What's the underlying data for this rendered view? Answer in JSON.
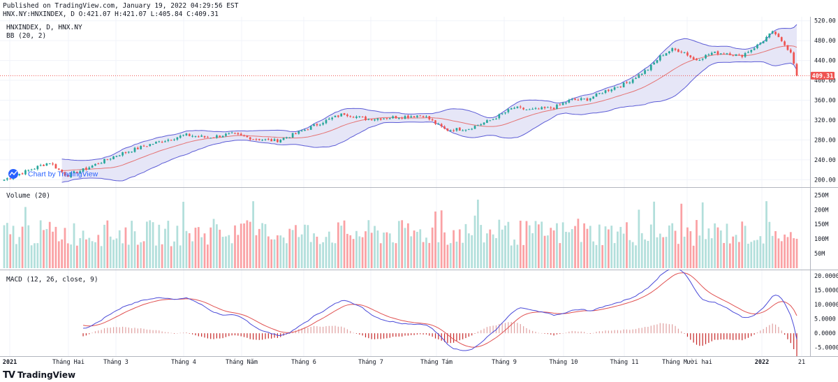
{
  "header": {
    "published_line": "Published on TradingView.com, January 19, 2022 04:29:56 EST",
    "ohlc_line": "HNX.NY:HNXINDEX, D O:421.07 H:421.07 L:405.84 C:409.31"
  },
  "panes": {
    "price_title": "HNXINDEX, D, HNX.NY",
    "bb_title": "BB (20, 2)",
    "watermark": "Chart by TradingView",
    "volume_title": "Volume (20)",
    "macd_title": "MACD (12, 26, close, 9)"
  },
  "footer": {
    "brand": "TradingView"
  },
  "colors": {
    "up": "#26a69a",
    "up_fill": "#b2dfdb",
    "down": "#ef5350",
    "down_fill": "#faa1a4",
    "bb_band": "#5c5cd6",
    "bb_basis": "#e57373",
    "bb_fill": "#e6e6f7",
    "macd_line": "#4a4ad8",
    "signal_line": "#e05050",
    "hist": "#c62828",
    "last_price": "#ef5350"
  },
  "chart_data": [
    {
      "type": "candlestick",
      "title": "HNXINDEX, D, HNX.NY",
      "x_ticks": [
        "2021",
        "Tháng Hai",
        "Tháng 3",
        "Tháng 4",
        "Tháng Năm",
        "Tháng 6",
        "Tháng 7",
        "Tháng Tám",
        "Tháng 9",
        "Tháng 10",
        "Tháng 11",
        "Tháng Mười hai",
        "2022",
        "21"
      ],
      "y_ticks": [
        "520.00",
        "480.00",
        "440.00",
        "400.00",
        "360.00",
        "320.00",
        "280.00",
        "240.00",
        "200.00"
      ],
      "ylim": [
        185,
        528
      ],
      "last_price": 409.31,
      "last_price_label": "409.31",
      "close_anchors": [
        [
          2021.0,
          200
        ],
        [
          2021.08,
          235
        ],
        [
          2021.11,
          208
        ],
        [
          2021.14,
          220
        ],
        [
          2021.2,
          250
        ],
        [
          2021.26,
          272
        ],
        [
          2021.32,
          290
        ],
        [
          2021.36,
          285
        ],
        [
          2021.4,
          292
        ],
        [
          2021.44,
          283
        ],
        [
          2021.48,
          278
        ],
        [
          2021.52,
          295
        ],
        [
          2021.56,
          315
        ],
        [
          2021.6,
          333
        ],
        [
          2021.64,
          322
        ],
        [
          2021.68,
          325
        ],
        [
          2021.74,
          330
        ],
        [
          2021.78,
          300
        ],
        [
          2021.82,
          303
        ],
        [
          2021.86,
          320
        ],
        [
          2021.9,
          345
        ],
        [
          2021.93,
          340
        ],
        [
          2021.97,
          345
        ],
        [
          2022.0,
          360
        ],
        [
          2022.03,
          362
        ],
        [
          2022.06,
          378
        ],
        [
          2022.1,
          395
        ],
        [
          2022.14,
          425
        ],
        [
          2022.16,
          450
        ],
        [
          2022.18,
          462
        ],
        [
          2022.2,
          458
        ],
        [
          2022.22,
          440
        ],
        [
          2022.25,
          455
        ],
        [
          2022.28,
          455
        ],
        [
          2022.3,
          448
        ],
        [
          2022.33,
          470
        ],
        [
          2022.35,
          490
        ],
        [
          2022.36,
          498
        ],
        [
          2022.37,
          480
        ],
        [
          2022.38,
          470
        ],
        [
          2022.39,
          455
        ],
        [
          2022.4,
          409.31
        ]
      ],
      "bollinger": {
        "length": 20,
        "mult": 2
      }
    },
    {
      "type": "bar",
      "title": "Volume (20)",
      "y_ticks": [
        "250M",
        "200M",
        "150M",
        "100M",
        "50M"
      ],
      "ylim": [
        0,
        270
      ],
      "unit": "M",
      "typical_range": [
        60,
        265
      ]
    },
    {
      "type": "line",
      "title": "MACD (12, 26, close, 9)",
      "y_ticks": [
        "20.0000",
        "15.0000",
        "10.0000",
        "5.0000",
        "0.0000",
        "-5.0000"
      ],
      "ylim": [
        -8,
        22
      ],
      "params": {
        "fast": 12,
        "slow": 26,
        "source": "close",
        "signal": 9
      }
    }
  ]
}
